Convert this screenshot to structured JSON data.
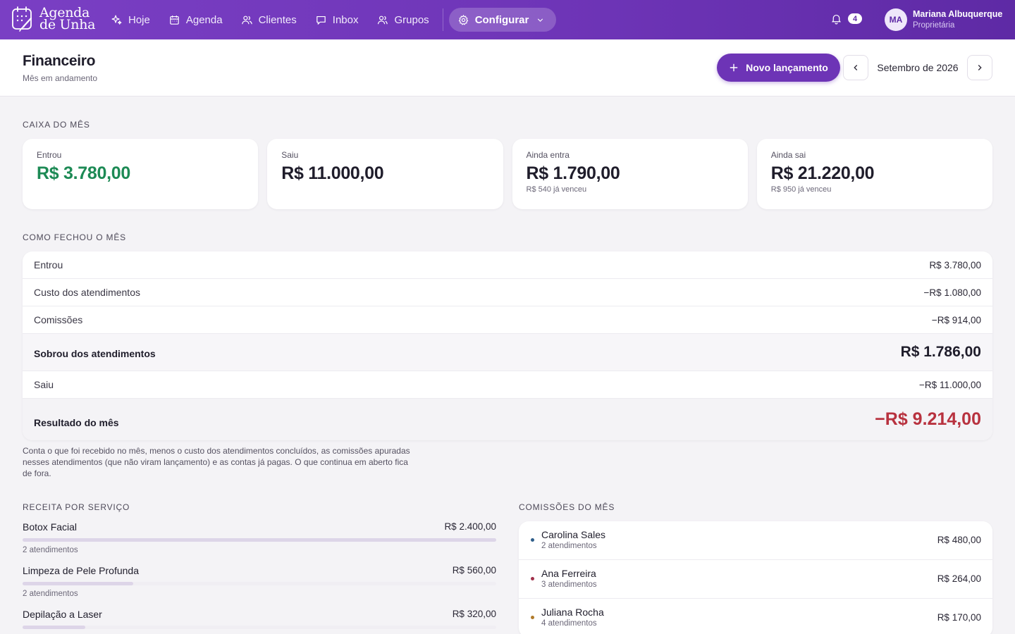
{
  "app": {
    "logo_line1": "Agenda",
    "logo_line2": "de Unha"
  },
  "nav": {
    "items": [
      {
        "label": "Hoje",
        "icon": "sparkles-icon"
      },
      {
        "label": "Agenda",
        "icon": "calendar-icon"
      },
      {
        "label": "Clientes",
        "icon": "users-icon"
      },
      {
        "label": "Inbox",
        "icon": "chat-icon"
      },
      {
        "label": "Grupos",
        "icon": "group-icon"
      }
    ],
    "settings_label": "Configurar",
    "notifications_count": "4"
  },
  "user": {
    "initials": "MA",
    "name": "Mariana Albuquerque",
    "role": "Proprietária"
  },
  "header": {
    "title": "Financeiro",
    "subtitle": "Mês em andamento",
    "new_button": "Novo lançamento",
    "month": "Setembro de 2026"
  },
  "cash": {
    "section_title": "Caixa do mês",
    "cards": [
      {
        "label": "Entrou",
        "value": "R$ 3.780,00",
        "note": ""
      },
      {
        "label": "Saiu",
        "value": "R$ 11.000,00",
        "note": ""
      },
      {
        "label": "Ainda entra",
        "value": "R$ 1.790,00",
        "note": "R$ 540 já venceu"
      },
      {
        "label": "Ainda sai",
        "value": "R$ 21.220,00",
        "note": "R$ 950 já venceu"
      }
    ]
  },
  "summary": {
    "section_title": "Como fechou o mês",
    "rows": [
      {
        "label": "Entrou",
        "value": "R$ 3.780,00"
      },
      {
        "label": "Custo dos atendimentos",
        "value": "−R$ 1.080,00"
      },
      {
        "label": "Comissões",
        "value": "−R$ 914,00"
      },
      {
        "label": "Sobrou dos atendimentos",
        "value": "R$ 1.786,00"
      },
      {
        "label": "Saiu",
        "value": "−R$ 11.000,00"
      },
      {
        "label": "Resultado do mês",
        "value": "−R$ 9.214,00"
      }
    ],
    "note": "Conta o que foi recebido no mês, menos o custo dos atendimentos concluídos, as comissões apuradas nesses atendimentos (que não viram lançamento) e as contas já pagas. O que continua em aberto fica de fora."
  },
  "revenue": {
    "section_title": "Receita por serviço",
    "items": [
      {
        "name": "Botox Facial",
        "value": "R$ 2.400,00",
        "count": "2 atendimentos",
        "share": 1.0
      },
      {
        "name": "Limpeza de Pele Profunda",
        "value": "R$ 560,00",
        "count": "2 atendimentos",
        "share": 0.233
      },
      {
        "name": "Depilação a Laser",
        "value": "R$ 320,00",
        "count": "",
        "share": 0.133
      }
    ]
  },
  "commissions": {
    "section_title": "Comissões do mês",
    "items": [
      {
        "name": "Carolina Sales",
        "count": "2 atendimentos",
        "value": "R$ 480,00",
        "color": "#2f5e8a"
      },
      {
        "name": "Ana Ferreira",
        "count": "3 atendimentos",
        "value": "R$ 264,00",
        "color": "#a0304a"
      },
      {
        "name": "Juliana Rocha",
        "count": "4 atendimentos",
        "value": "R$ 170,00",
        "color": "#b07a2a"
      }
    ]
  }
}
